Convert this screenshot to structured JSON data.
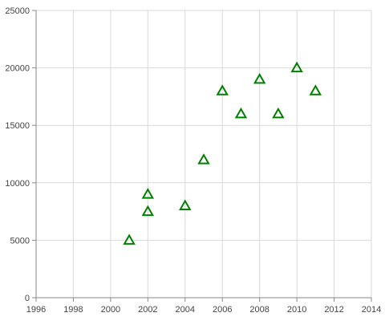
{
  "chart_data": {
    "type": "scatter",
    "title": "",
    "xlabel": "",
    "ylabel": "",
    "xlim": [
      1996,
      2014
    ],
    "ylim": [
      0,
      25000
    ],
    "x_ticks": [
      "1996",
      "1998",
      "2000",
      "2002",
      "2004",
      "2006",
      "2008",
      "2010",
      "2012",
      "2014"
    ],
    "y_ticks": [
      "0",
      "5000",
      "10000",
      "15000",
      "20000",
      "25000"
    ],
    "grid": true,
    "legend": "none",
    "marker": "triangle-open",
    "colors": {
      "series": "#008000",
      "grid": "#d9d9d9",
      "axis": "#888888"
    },
    "series": [
      {
        "points": [
          {
            "x": 2001,
            "y": 5000
          },
          {
            "x": 2002,
            "y": 7500
          },
          {
            "x": 2002,
            "y": 9000
          },
          {
            "x": 2004,
            "y": 8000
          },
          {
            "x": 2005,
            "y": 12000
          },
          {
            "x": 2006,
            "y": 18000
          },
          {
            "x": 2007,
            "y": 16000
          },
          {
            "x": 2008,
            "y": 19000
          },
          {
            "x": 2009,
            "y": 16000
          },
          {
            "x": 2010,
            "y": 20000
          },
          {
            "x": 2011,
            "y": 18000
          }
        ]
      }
    ]
  }
}
